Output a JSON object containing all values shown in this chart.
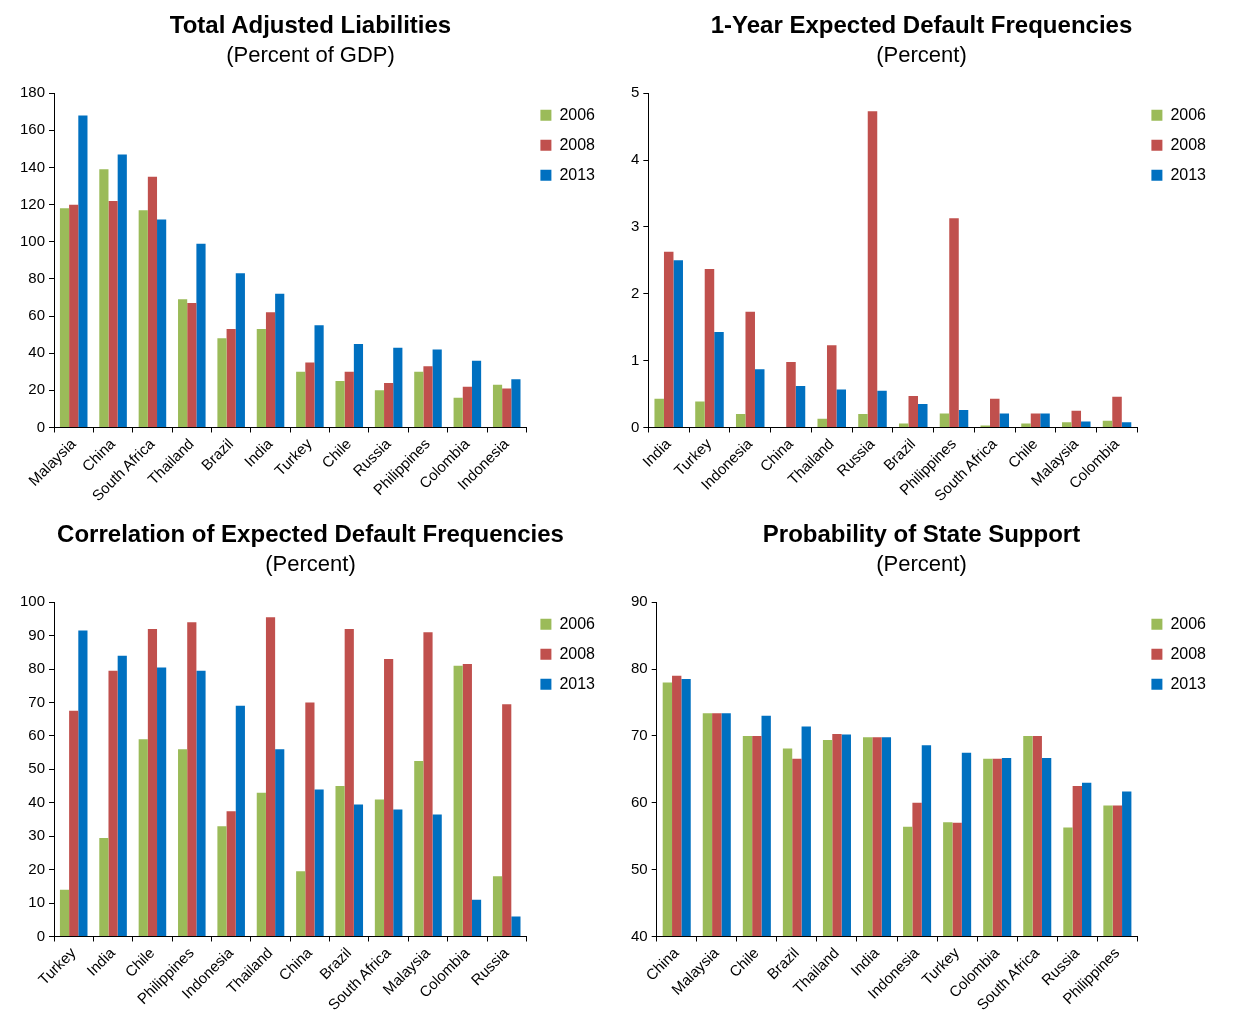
{
  "chart_data": [
    {
      "type": "bar",
      "title": "Total Adjusted Liabilities",
      "subtitle": "(Percent of GDP)",
      "categories": [
        "Malaysia",
        "China",
        "South Africa",
        "Thailand",
        "Brazil",
        "India",
        "Turkey",
        "Chile",
        "Russia",
        "Philippines",
        "Colombia",
        "Indonesia"
      ],
      "series": [
        {
          "name": "2006",
          "color": "#9bbb59",
          "values": [
            118,
            139,
            117,
            69,
            48,
            53,
            30,
            25,
            20,
            30,
            16,
            23
          ]
        },
        {
          "name": "2008",
          "color": "#c0504d",
          "values": [
            120,
            122,
            135,
            67,
            53,
            62,
            35,
            30,
            24,
            33,
            22,
            21
          ]
        },
        {
          "name": "2013",
          "color": "#0070c0",
          "values": [
            168,
            147,
            112,
            99,
            83,
            72,
            55,
            45,
            43,
            42,
            36,
            26
          ]
        }
      ],
      "ylim": [
        0,
        180
      ],
      "yticks": [
        0,
        20,
        40,
        60,
        80,
        100,
        120,
        140,
        160,
        180
      ],
      "legend": "top right",
      "grid": false
    },
    {
      "type": "bar",
      "title": "1-Year Expected Default Frequencies",
      "subtitle": "(Percent)",
      "categories": [
        "India",
        "Turkey",
        "Indonesia",
        "China",
        "Thailand",
        "Russia",
        "Brazil",
        "Philippines",
        "South Africa",
        "Chile",
        "Malaysia",
        "Colombia"
      ],
      "series": [
        {
          "name": "2006",
          "color": "#9bbb59",
          "values": [
            0.43,
            0.39,
            0.2,
            null,
            0.13,
            0.2,
            0.06,
            0.21,
            0.03,
            0.06,
            0.08,
            0.1
          ]
        },
        {
          "name": "2008",
          "color": "#c0504d",
          "values": [
            2.63,
            2.37,
            1.73,
            0.98,
            1.23,
            4.73,
            0.47,
            3.13,
            0.43,
            0.21,
            0.25,
            0.46
          ]
        },
        {
          "name": "2013",
          "color": "#0070c0",
          "values": [
            2.5,
            1.43,
            0.87,
            0.62,
            0.57,
            0.55,
            0.35,
            0.26,
            0.21,
            0.21,
            0.09,
            0.08
          ]
        }
      ],
      "ylim": [
        0,
        5
      ],
      "yticks": [
        0,
        1,
        2,
        3,
        4,
        5
      ],
      "legend": "top right",
      "grid": false
    },
    {
      "type": "bar",
      "title": "Correlation of Expected Default Frequencies",
      "subtitle": "(Percent)",
      "categories": [
        "Turkey",
        "India",
        "Chile",
        "Philippines",
        "Indonesia",
        "Thailand",
        "China",
        "Brazil",
        "South Africa",
        "Malaysia",
        "Colombia",
        "Russia"
      ],
      "series": [
        {
          "name": "2006",
          "color": "#9bbb59",
          "values": [
            14,
            29.5,
            59,
            56,
            33,
            43,
            19.5,
            45,
            41,
            52.5,
            81,
            18
          ]
        },
        {
          "name": "2008",
          "color": "#c0504d",
          "values": [
            67.5,
            79.5,
            92,
            94,
            37.5,
            95.5,
            70,
            92,
            83,
            91,
            81.5,
            69.5
          ]
        },
        {
          "name": "2013",
          "color": "#0070c0",
          "values": [
            91.5,
            84,
            80.5,
            79.5,
            69,
            56,
            44,
            39.5,
            38,
            36.5,
            11,
            6
          ]
        }
      ],
      "ylim": [
        0,
        100
      ],
      "yticks": [
        0,
        10,
        20,
        30,
        40,
        50,
        60,
        70,
        80,
        90,
        100
      ],
      "legend": "top right",
      "grid": false
    },
    {
      "type": "bar",
      "title": "Probability of State Support",
      "subtitle": "(Percent)",
      "categories": [
        "China",
        "Malaysia",
        "Chile",
        "Brazil",
        "Thailand",
        "India",
        "Indonesia",
        "Turkey",
        "Colombia",
        "South Africa",
        "Russia",
        "Philippines"
      ],
      "series": [
        {
          "name": "2006",
          "color": "#9bbb59",
          "values": [
            78,
            73.4,
            70,
            68.1,
            69.4,
            69.8,
            56.4,
            57.1,
            66.6,
            70,
            56.3,
            59.6
          ]
        },
        {
          "name": "2008",
          "color": "#c0504d",
          "values": [
            79,
            73.4,
            70,
            66.6,
            70.3,
            69.8,
            60,
            57,
            66.6,
            70,
            62.5,
            59.6
          ]
        },
        {
          "name": "2013",
          "color": "#0070c0",
          "values": [
            78.5,
            73.4,
            73,
            71.4,
            70.2,
            69.8,
            68.6,
            67.5,
            66.7,
            66.7,
            63,
            61.7
          ]
        }
      ],
      "ylim": [
        40,
        90
      ],
      "yticks": [
        40,
        50,
        60,
        70,
        80,
        90
      ],
      "legend": "top right",
      "grid": false
    }
  ]
}
